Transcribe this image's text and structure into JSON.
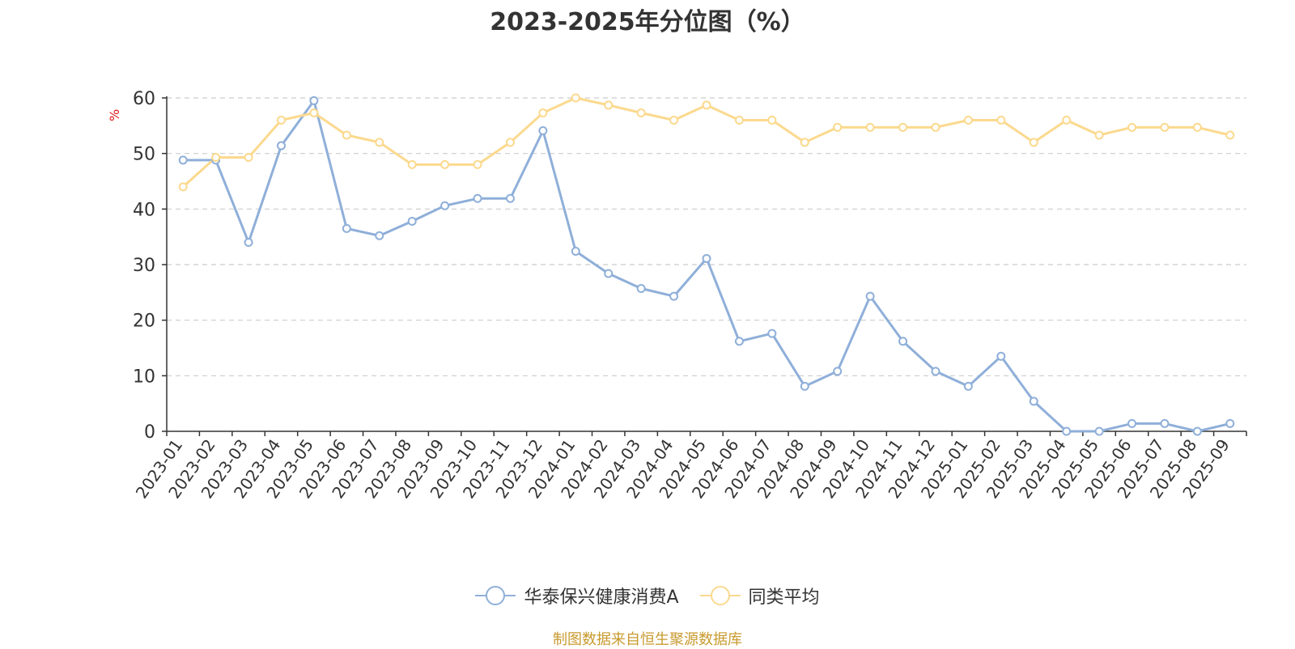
{
  "chart_data": {
    "type": "line",
    "title": "2023-2025年分位图（%）",
    "ylabel": "%",
    "ylim": [
      0,
      60
    ],
    "yticks": [
      0,
      10,
      20,
      30,
      40,
      50,
      60
    ],
    "grid": true,
    "legend_position": "bottom",
    "categories": [
      "2023-01",
      "2023-02",
      "2023-03",
      "2023-04",
      "2023-05",
      "2023-06",
      "2023-07",
      "2023-08",
      "2023-09",
      "2023-10",
      "2023-11",
      "2023-12",
      "2024-01",
      "2024-02",
      "2024-03",
      "2024-04",
      "2024-05",
      "2024-06",
      "2024-07",
      "2024-08",
      "2024-09",
      "2024-10",
      "2024-11",
      "2024-12",
      "2025-01",
      "2025-02",
      "2025-03",
      "2025-04",
      "2025-05",
      "2025-06",
      "2025-07",
      "2025-08",
      "2025-09"
    ],
    "series": [
      {
        "name": "华泰保兴健康消费A",
        "color": "#8fafd9",
        "values": [
          48.8,
          48.8,
          34.0,
          51.4,
          59.5,
          36.5,
          35.2,
          37.8,
          40.6,
          41.9,
          41.9,
          54.1,
          32.4,
          28.4,
          25.7,
          24.3,
          31.1,
          16.2,
          17.6,
          8.1,
          10.8,
          24.3,
          16.2,
          10.8,
          8.1,
          13.5,
          5.4,
          0.0,
          0.0,
          1.4,
          1.4,
          0.0,
          1.4
        ]
      },
      {
        "name": "同类平均",
        "color": "#fbd98e",
        "values": [
          44.0,
          49.3,
          49.3,
          56.0,
          57.3,
          53.3,
          52.0,
          48.0,
          48.0,
          48.0,
          52.0,
          57.3,
          60.0,
          58.7,
          57.3,
          56.0,
          58.7,
          56.0,
          56.0,
          52.0,
          54.7,
          54.7,
          54.7,
          54.7,
          56.0,
          56.0,
          52.0,
          56.0,
          53.3,
          54.7,
          54.7,
          54.7,
          53.3
        ]
      }
    ]
  },
  "source_note": "制图数据来自恒生聚源数据库"
}
